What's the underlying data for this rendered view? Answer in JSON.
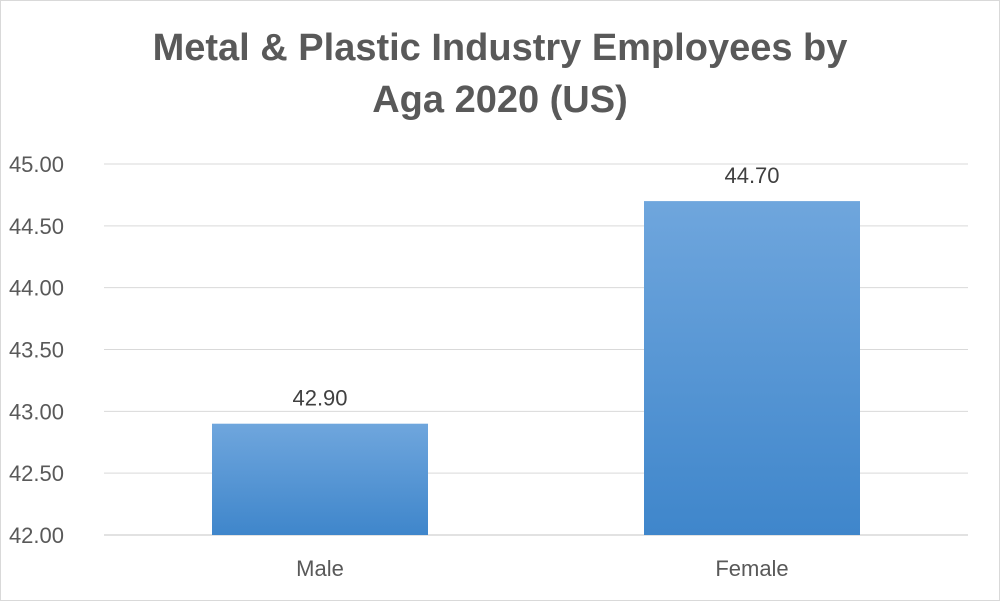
{
  "chart_data": {
    "type": "bar",
    "title_lines": [
      "Metal & Plastic Industry Employees by",
      "Aga 2020 (US)"
    ],
    "categories": [
      "Male",
      "Female"
    ],
    "values": [
      42.9,
      44.7
    ],
    "value_labels": [
      "42.90",
      "44.70"
    ],
    "xlabel": "",
    "ylabel": "",
    "ylim": [
      42.0,
      45.0
    ],
    "yticks": [
      42.0,
      42.5,
      43.0,
      43.5,
      44.0,
      44.5,
      45.0
    ],
    "ytick_labels": [
      "42.00",
      "42.50",
      "43.00",
      "43.50",
      "44.00",
      "44.50",
      "45.00"
    ],
    "grid": true,
    "legend": "none",
    "colors": {
      "bar_top": "#6fa6dd",
      "bar_bottom": "#3f86cb",
      "grid": "#d9d9d9",
      "axis_text": "#595959",
      "title": "#595959"
    }
  }
}
